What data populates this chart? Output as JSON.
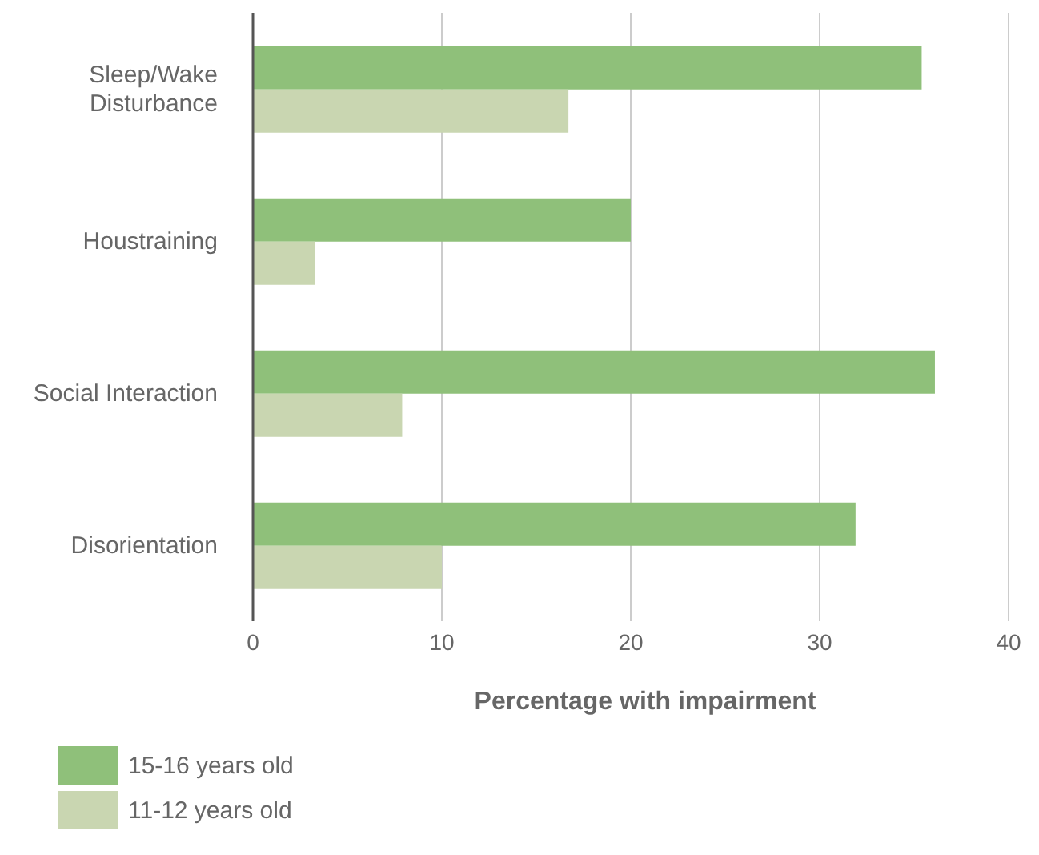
{
  "chart_data": {
    "type": "bar",
    "orientation": "horizontal",
    "categories": [
      "Sleep/Wake Disturbance",
      "Houstraining",
      "Social Interaction",
      "Disorientation"
    ],
    "series": [
      {
        "name": "15-16 years old",
        "color": "#8fc07a",
        "values": [
          35.4,
          20.0,
          36.1,
          31.9
        ]
      },
      {
        "name": "11-12 years old",
        "color": "#c9d6b1",
        "values": [
          16.7,
          3.3,
          7.9,
          10.0
        ]
      }
    ],
    "xlabel": "Percentage with impairment",
    "xlim": [
      0,
      40
    ],
    "xticks": [
      0,
      10,
      20,
      30,
      40
    ],
    "grid": "x",
    "legend": "bottom left"
  }
}
